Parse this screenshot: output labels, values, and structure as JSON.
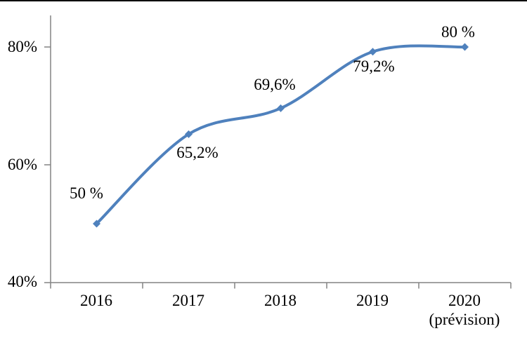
{
  "page": {
    "background": "#ffffff",
    "top_border_color": "#000000"
  },
  "chart_data": {
    "type": "line",
    "title": "",
    "categories": [
      "2016",
      "2017",
      "2018",
      "2019",
      "2020 (prévision)"
    ],
    "values": [
      50,
      65.2,
      69.6,
      79.2,
      80
    ],
    "data_labels": [
      "50 %",
      "65,2%",
      "69,6%",
      "79,2%",
      "80 %"
    ],
    "x_tick_labels": [
      "2016",
      "2017",
      "2018",
      "2019",
      "2020"
    ],
    "x_sub_label": "(prévision)",
    "y_tick_labels": [
      "80%",
      "60%",
      "40%"
    ],
    "y_tick_values": [
      80,
      60,
      40
    ],
    "ylim": [
      40,
      85.4
    ],
    "xlabel": "",
    "ylabel": "",
    "grid": false,
    "legend": false,
    "smooth": true,
    "marker": "diamond",
    "line_color": "#4F81BD",
    "marker_color": "#4F81BD",
    "axis_color": "#848484",
    "text_color": "#000000"
  }
}
